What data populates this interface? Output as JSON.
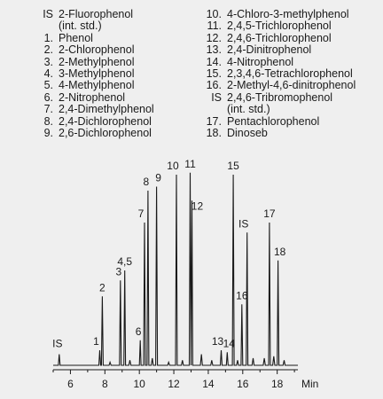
{
  "legend_left": [
    {
      "key": "IS",
      "name": "2-Fluorophenol",
      "sub": "(int. std.)"
    },
    {
      "key": "1.",
      "name": "Phenol"
    },
    {
      "key": "2.",
      "name": "2-Chlorophenol"
    },
    {
      "key": "3.",
      "name": "2-Methylphenol"
    },
    {
      "key": "4.",
      "name": "3-Methylphenol"
    },
    {
      "key": "5.",
      "name": "4-Methylphenol"
    },
    {
      "key": "6.",
      "name": "2-Nitrophenol"
    },
    {
      "key": "7.",
      "name": "2,4-Dimethylphenol"
    },
    {
      "key": "8.",
      "name": "2,4-Dichlorophenol"
    },
    {
      "key": "9.",
      "name": "2,6-Dichlorophenol"
    }
  ],
  "legend_right": [
    {
      "key": "10.",
      "name": "4-Chloro-3-methylphenol"
    },
    {
      "key": "11.",
      "name": "2,4,5-Trichlorophenol"
    },
    {
      "key": "12.",
      "name": "2,4,6-Trichlorophenol"
    },
    {
      "key": "13.",
      "name": "2,4-Dinitrophenol"
    },
    {
      "key": "14.",
      "name": "4-Nitrophenol"
    },
    {
      "key": "15.",
      "name": "2,3,4,6-Tetrachlorophenol"
    },
    {
      "key": "16.",
      "name": "2-Methyl-4,6-dinitrophenol"
    },
    {
      "key": "IS",
      "name": "2,4,6-Tribromophenol",
      "sub": "(int. std.)"
    },
    {
      "key": "17.",
      "name": "Pentachlorophenol"
    },
    {
      "key": "18.",
      "name": "Dinoseb"
    }
  ],
  "colors": {
    "background": "#efefef",
    "trace": "#1a1a1a"
  },
  "chart_data": {
    "type": "line",
    "xlabel": "Min",
    "xlim": [
      5,
      19.2
    ],
    "ylim": [
      0,
      100
    ],
    "x_ticks": [
      6,
      8,
      10,
      12,
      14,
      16,
      18
    ],
    "y_axis_visible": false,
    "grid": false,
    "peaks": [
      {
        "label": "IS",
        "x": 5.35,
        "y": 6
      },
      {
        "label": "1",
        "x": 7.7,
        "y": 8
      },
      {
        "label": "2",
        "x": 7.85,
        "y": 35
      },
      {
        "label": "3",
        "x": 8.9,
        "y": 43
      },
      {
        "label": "4,5",
        "x": 9.15,
        "y": 48
      },
      {
        "label": "6",
        "x": 10.05,
        "y": 13
      },
      {
        "label": "7",
        "x": 10.3,
        "y": 72
      },
      {
        "label": "8",
        "x": 10.5,
        "y": 88
      },
      {
        "label": "9",
        "x": 11.0,
        "y": 90
      },
      {
        "label": "10",
        "x": 12.15,
        "y": 96
      },
      {
        "label": "11",
        "x": 12.95,
        "y": 97
      },
      {
        "label": "12",
        "x": 13.05,
        "y": 83
      },
      {
        "label": "13",
        "x": 14.75,
        "y": 8
      },
      {
        "label": "14",
        "x": 15.1,
        "y": 7
      },
      {
        "label": "15",
        "x": 15.45,
        "y": 96
      },
      {
        "label": "16",
        "x": 15.95,
        "y": 31
      },
      {
        "label": "IS",
        "x": 16.25,
        "y": 67
      },
      {
        "label": "17",
        "x": 17.55,
        "y": 72
      },
      {
        "label": "18",
        "x": 18.05,
        "y": 53
      }
    ],
    "minor_peaks": [
      {
        "x": 8.3,
        "y": 2
      },
      {
        "x": 9.45,
        "y": 3
      },
      {
        "x": 10.75,
        "y": 4
      },
      {
        "x": 11.7,
        "y": 2
      },
      {
        "x": 12.5,
        "y": 3
      },
      {
        "x": 13.6,
        "y": 6
      },
      {
        "x": 14.2,
        "y": 3
      },
      {
        "x": 15.7,
        "y": 3
      },
      {
        "x": 16.6,
        "y": 4
      },
      {
        "x": 17.25,
        "y": 4
      },
      {
        "x": 17.8,
        "y": 5
      },
      {
        "x": 18.4,
        "y": 3
      }
    ]
  }
}
